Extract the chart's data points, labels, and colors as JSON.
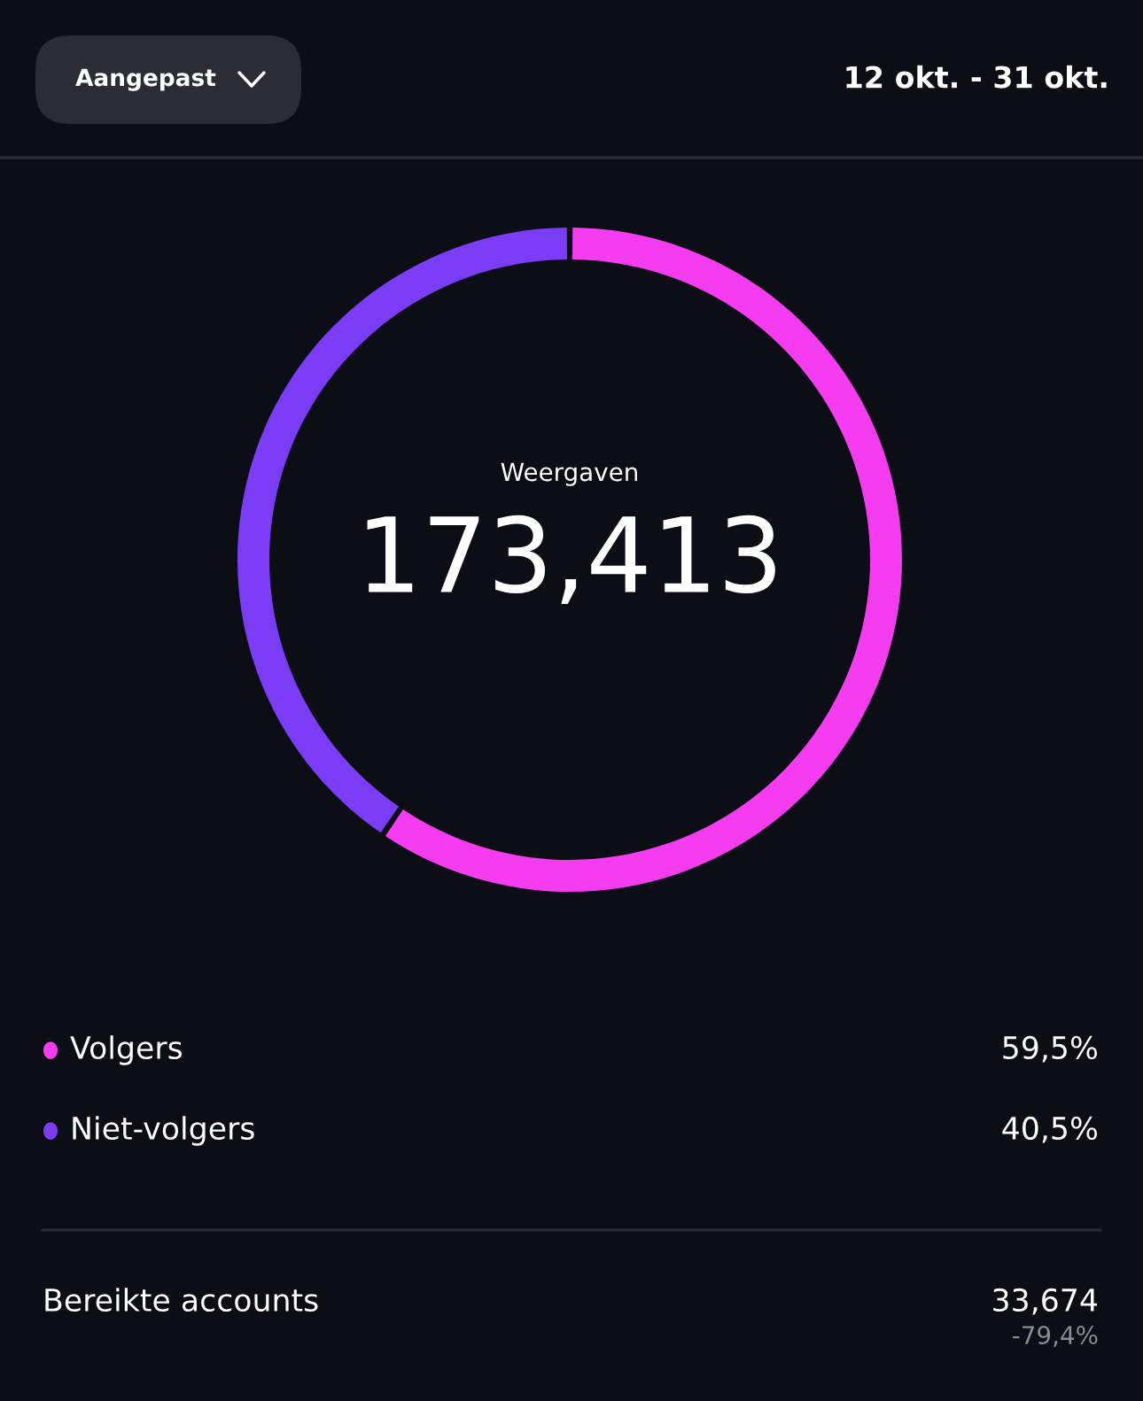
{
  "chart_data": {
    "type": "donut",
    "title": "Weergaven",
    "subtitle": "173,413",
    "categories": [
      "Volgers",
      "Niet-volgers"
    ],
    "values": [
      59.5,
      40.5
    ],
    "colors": [
      "#f53cf0",
      "#7b3cf5"
    ],
    "value_labels": [
      "59,5%",
      "40,5%"
    ],
    "legend": "bottom",
    "annotations": [
      "Aangepast",
      "12 okt. - 31 okt.",
      "Bereikte accounts",
      "33,674",
      "-79,4%"
    ]
  }
}
